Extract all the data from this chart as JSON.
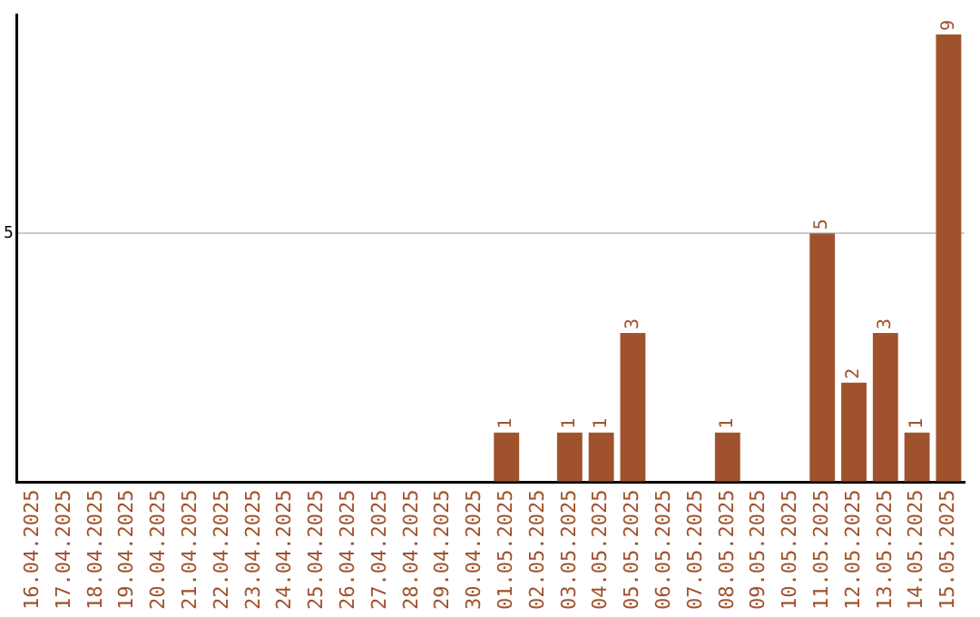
{
  "chart_data": {
    "type": "bar",
    "categories": [
      "16.04.2025",
      "17.04.2025",
      "18.04.2025",
      "19.04.2025",
      "20.04.2025",
      "21.04.2025",
      "22.04.2025",
      "23.04.2025",
      "24.04.2025",
      "25.04.2025",
      "26.04.2025",
      "27.04.2025",
      "28.04.2025",
      "29.04.2025",
      "30.04.2025",
      "01.05.2025",
      "02.05.2025",
      "03.05.2025",
      "04.05.2025",
      "05.05.2025",
      "06.05.2025",
      "07.05.2025",
      "08.05.2025",
      "09.05.2025",
      "10.05.2025",
      "11.05.2025",
      "12.05.2025",
      "13.05.2025",
      "14.05.2025",
      "15.05.2025"
    ],
    "values": [
      null,
      null,
      null,
      null,
      null,
      null,
      null,
      null,
      null,
      null,
      null,
      null,
      null,
      null,
      null,
      1,
      null,
      1,
      1,
      3,
      null,
      null,
      1,
      null,
      null,
      5,
      2,
      3,
      1,
      9
    ],
    "data_labels": true,
    "color": "#a0522d",
    "ylim": [
      0,
      9.4
    ],
    "yticks": [
      {
        "value": 0,
        "label": null
      },
      5
    ],
    "grid": "y",
    "legend": false
  }
}
